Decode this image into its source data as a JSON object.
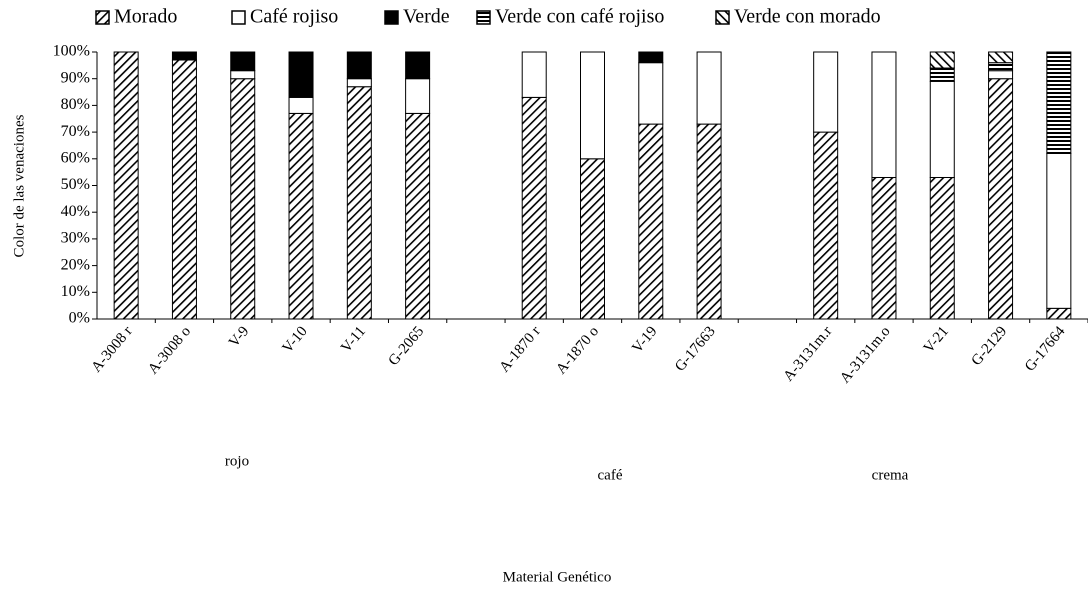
{
  "chart_data": {
    "type": "stacked-bar-100",
    "y_axis_label": "Color de las venaciones",
    "x_axis_label": "Material Genético",
    "group_labels": [
      "rojo",
      "café",
      "crema"
    ],
    "categories": [
      "A-3008 r",
      "A-3008 o",
      "V-9",
      "V-10",
      "V-11",
      "G-2065",
      null,
      "A-1870 r",
      "A-1870 o",
      "V-19",
      "G-17663",
      null,
      "A-3131m.r",
      "A-3131m.o",
      "V-21",
      "G-2129",
      "G-17664"
    ],
    "series": [
      {
        "name": "Morado",
        "color": "#000000",
        "pattern": "diagonal",
        "values": [
          100,
          97,
          90,
          77,
          87,
          77,
          null,
          83,
          60,
          73,
          73,
          null,
          70,
          53,
          53,
          90,
          4
        ]
      },
      {
        "name": "Café rojiso",
        "color": "#ffffff",
        "pattern": "none",
        "values": [
          0,
          0,
          3,
          6,
          3,
          13,
          null,
          17,
          40,
          23,
          27,
          null,
          30,
          47,
          36,
          3,
          58
        ]
      },
      {
        "name": "Verde",
        "color": "#000000",
        "pattern": "solid",
        "values": [
          0,
          3,
          7,
          17,
          10,
          10,
          null,
          0,
          0,
          4,
          0,
          null,
          0,
          0,
          0,
          0,
          0
        ]
      },
      {
        "name": "Verde con café rojiso",
        "color": "#000000",
        "pattern": "horizontal",
        "values": [
          0,
          0,
          0,
          0,
          0,
          0,
          null,
          0,
          0,
          0,
          0,
          null,
          0,
          0,
          5,
          3,
          38
        ]
      },
      {
        "name": "Verde con morado",
        "color": "#000000",
        "pattern": "backslash",
        "values": [
          0,
          0,
          0,
          0,
          0,
          0,
          null,
          0,
          0,
          0,
          0,
          null,
          0,
          0,
          6,
          4,
          0
        ]
      }
    ],
    "ylim": [
      0,
      100
    ],
    "yticks": [
      {
        "value": 0,
        "label": "0%"
      },
      {
        "value": 10,
        "label": "10%"
      },
      {
        "value": 20,
        "label": "20%"
      },
      {
        "value": 30,
        "label": "30%"
      },
      {
        "value": 40,
        "label": "40%"
      },
      {
        "value": 50,
        "label": "50%"
      },
      {
        "value": 60,
        "label": "60%"
      },
      {
        "value": 70,
        "label": "70%"
      },
      {
        "value": 80,
        "label": "80%"
      },
      {
        "value": 90,
        "label": "90%"
      },
      {
        "value": 100,
        "label": "100%"
      }
    ],
    "grid": false,
    "legend": "top"
  }
}
